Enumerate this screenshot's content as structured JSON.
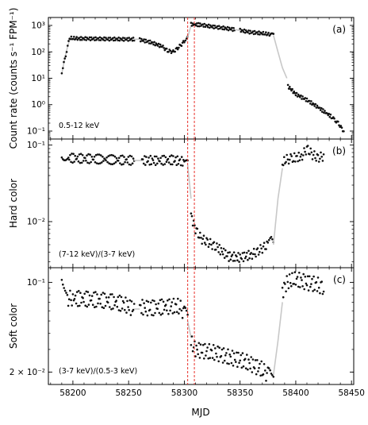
{
  "chart_data": [
    {
      "panel": "a",
      "type": "scatter",
      "panel_letter": "(a)",
      "annotation": "0.5-12 keV",
      "ylabel": "Count rate (counts s⁻¹ FPM⁻¹)",
      "yscale": "log",
      "ylim": [
        0.05,
        2000
      ],
      "yticks": [
        {
          "value": 0.1,
          "label": "10⁻¹"
        },
        {
          "value": 1,
          "label": "10⁰"
        },
        {
          "value": 10,
          "label": "10¹"
        },
        {
          "value": 100,
          "label": "10²"
        },
        {
          "value": 1000,
          "label": "10³"
        }
      ],
      "series": [
        {
          "x": [
            58190,
            58192,
            58194,
            58196,
            58197
          ],
          "y": [
            15,
            40,
            100,
            200,
            320
          ],
          "style": "gray-line"
        },
        {
          "x": [
            58190,
            58191,
            58197,
            58205,
            58215,
            58225,
            58235,
            58245,
            58255
          ],
          "y": [
            15,
            25,
            330,
            320,
            315,
            310,
            305,
            300,
            300
          ],
          "style": "points"
        },
        {
          "x": [
            58255,
            58260
          ],
          "y": [
            300,
            300
          ],
          "style": "gray-line"
        },
        {
          "x": [
            58260,
            58270,
            58280,
            58285,
            58290,
            58295,
            58300,
            58303
          ],
          "y": [
            290,
            230,
            160,
            110,
            100,
            150,
            250,
            350
          ],
          "style": "points"
        },
        {
          "x": [
            58303,
            58306
          ],
          "y": [
            350,
            1000
          ],
          "style": "gray-line"
        },
        {
          "x": [
            58306,
            58315,
            58325,
            58335,
            58345
          ],
          "y": [
            1100,
            1050,
            900,
            800,
            700
          ],
          "style": "points"
        },
        {
          "x": [
            58345,
            58350
          ],
          "y": [
            700,
            650
          ],
          "style": "gray-line"
        },
        {
          "x": [
            58350,
            58360,
            58370,
            58378,
            58380
          ],
          "y": [
            650,
            550,
            500,
            450,
            420
          ],
          "style": "points"
        },
        {
          "x": [
            58380,
            58384,
            58388,
            58392
          ],
          "y": [
            420,
            100,
            25,
            10
          ],
          "style": "gray-line"
        },
        {
          "x": [
            58393,
            58400,
            58410,
            58420,
            58432,
            58438,
            58443
          ],
          "y": [
            5,
            2.5,
            1.5,
            0.8,
            0.35,
            0.2,
            0.1
          ],
          "style": "points"
        }
      ]
    },
    {
      "panel": "b",
      "type": "scatter",
      "panel_letter": "(b)",
      "annotation": "(7-12 keV)/(3-7 keV)",
      "ylabel": "Hard color",
      "yscale": "log",
      "ylim": [
        0.0025,
        0.12
      ],
      "yticks": [
        {
          "value": 0.01,
          "label": "10⁻²"
        },
        {
          "value": 0.1,
          "label": "10⁻¹"
        }
      ],
      "series": [
        {
          "x": [
            58190,
            58193,
            58196,
            58205,
            58220,
            58240,
            58255
          ],
          "y": [
            0.075,
            0.072,
            0.068,
            0.067,
            0.066,
            0.064,
            0.063
          ],
          "style": "points"
        },
        {
          "x": [
            58255,
            58262
          ],
          "y": [
            0.063,
            0.063
          ],
          "style": "gray-line"
        },
        {
          "x": [
            58262,
            58275,
            58290,
            58300,
            58303
          ],
          "y": [
            0.063,
            0.063,
            0.064,
            0.06,
            0.055
          ],
          "style": "points"
        },
        {
          "x": [
            58303,
            58306
          ],
          "y": [
            0.055,
            0.02
          ],
          "style": "gray-line"
        },
        {
          "x": [
            58306,
            58310,
            58315,
            58320,
            58325,
            58330,
            58340,
            58350,
            58360,
            58365,
            58370,
            58375,
            58378,
            58380
          ],
          "y": [
            0.012,
            0.008,
            0.006,
            0.0055,
            0.005,
            0.0045,
            0.0035,
            0.0034,
            0.0037,
            0.004,
            0.0045,
            0.005,
            0.0055,
            0.005
          ],
          "style": "points"
        },
        {
          "x": [
            58380,
            58384,
            58388
          ],
          "y": [
            0.005,
            0.02,
            0.05
          ],
          "style": "gray-line"
        },
        {
          "x": [
            58388,
            58392,
            58398,
            58405,
            58410,
            58415,
            58420,
            58425
          ],
          "y": [
            0.058,
            0.065,
            0.068,
            0.07,
            0.09,
            0.075,
            0.068,
            0.072
          ],
          "style": "points"
        }
      ]
    },
    {
      "panel": "c",
      "type": "scatter",
      "panel_letter": "(c)",
      "annotation": "(3-7 keV)/(0.5-3 keV)",
      "ylabel": "Soft color",
      "yscale": "log",
      "ylim": [
        0.016,
        0.13
      ],
      "yticks": [
        {
          "value": 0.02,
          "label": "2 × 10⁻²"
        },
        {
          "value": 0.1,
          "label": "10⁻¹"
        }
      ],
      "series": [
        {
          "x": [
            58190,
            58192,
            58195,
            58200,
            58215,
            58230,
            58245,
            58255
          ],
          "y": [
            0.12,
            0.1,
            0.075,
            0.075,
            0.074,
            0.072,
            0.068,
            0.062
          ],
          "style": "points"
        },
        {
          "x": [
            58255,
            58260
          ],
          "y": [
            0.062,
            0.062
          ],
          "style": "gray-line"
        },
        {
          "x": [
            58260,
            58270,
            58285,
            58295,
            58300,
            58303
          ],
          "y": [
            0.064,
            0.063,
            0.065,
            0.065,
            0.058,
            0.05
          ],
          "style": "points"
        },
        {
          "x": [
            58303,
            58306
          ],
          "y": [
            0.05,
            0.037
          ],
          "style": "gray-line"
        },
        {
          "x": [
            58306,
            58310,
            58320,
            58330,
            58340,
            58350,
            58360,
            58370,
            58375,
            58378,
            58380
          ],
          "y": [
            0.034,
            0.03,
            0.029,
            0.028,
            0.026,
            0.025,
            0.023,
            0.021,
            0.019,
            0.018,
            0.019
          ],
          "style": "points"
        },
        {
          "x": [
            58380,
            58384,
            58388
          ],
          "y": [
            0.019,
            0.035,
            0.07
          ],
          "style": "gray-line"
        },
        {
          "x": [
            58388,
            58392,
            58400,
            58410,
            58420,
            58425
          ],
          "y": [
            0.085,
            0.1,
            0.105,
            0.1,
            0.095,
            0.09
          ],
          "style": "points"
        }
      ]
    }
  ],
  "shared_x": {
    "xlabel": "MJD",
    "xlim": [
      58178,
      58452
    ],
    "xticks": [
      58200,
      58250,
      58300,
      58350,
      58400,
      58450
    ]
  },
  "vlines": {
    "x": [
      58303,
      58309
    ],
    "color": "#e8302a",
    "style": "dashed"
  },
  "colors": {
    "points": "#111111",
    "gap_line": "#c8c8c8",
    "axis": "#000000"
  }
}
